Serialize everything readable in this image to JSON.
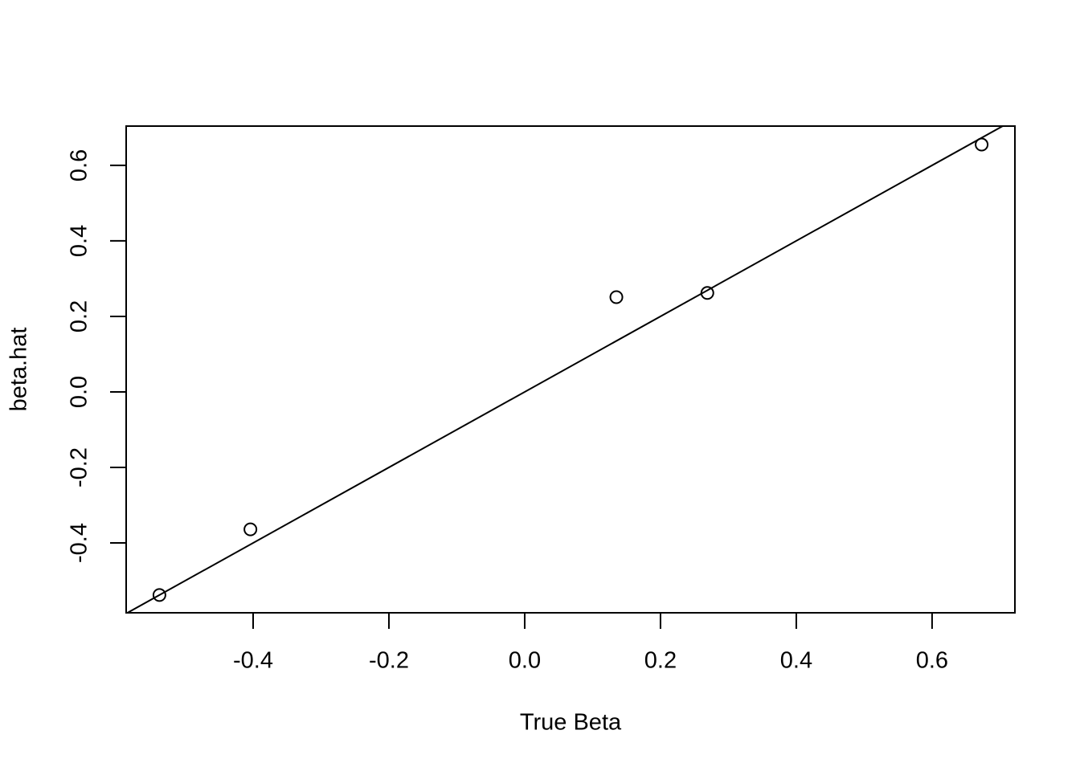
{
  "chart_data": {
    "type": "scatter",
    "xlabel": "True Beta",
    "ylabel": "beta.hat",
    "x": [
      -0.538,
      -0.404,
      0.135,
      0.269,
      0.673
    ],
    "values": [
      -0.538,
      -0.364,
      0.251,
      0.262,
      0.655
    ],
    "color": "#000000",
    "xlim": [
      -0.587,
      0.722
    ],
    "ylim": [
      -0.585,
      0.704
    ],
    "xticks": [
      -0.4,
      -0.2,
      {
        "value": 0,
        "label": "0.0"
      },
      0.2,
      0.4,
      0.6
    ],
    "yticks": [
      -0.4,
      -0.2,
      {
        "value": 0,
        "label": "0.0"
      },
      0.2,
      0.4,
      0.6
    ],
    "reference_line": {
      "slope": 1,
      "intercept": 0
    }
  }
}
